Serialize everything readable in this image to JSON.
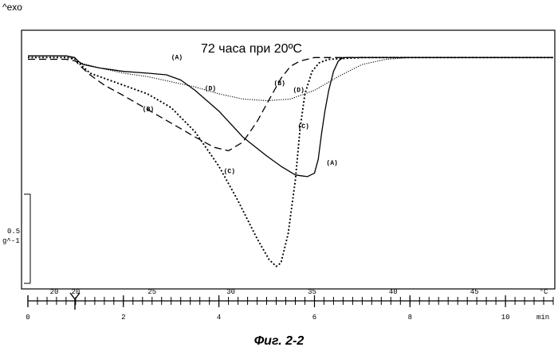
{
  "header_label": "^exo",
  "scale_bar": {
    "value": "0.5",
    "unit": "g^-1"
  },
  "caption": "Фиг. 2-2",
  "chart_data": {
    "type": "line",
    "title": "72 часа при 20ºC",
    "x_time": {
      "unit": "min",
      "lim": [
        0,
        11
      ],
      "ticks": [
        {
          "v": 0,
          "label": "0"
        },
        {
          "v": 2,
          "label": "2"
        },
        {
          "v": 4,
          "label": "4"
        },
        {
          "v": 6,
          "label": "6"
        },
        {
          "v": 8,
          "label": "8"
        },
        {
          "v": 10,
          "label": "10"
        }
      ]
    },
    "x_temp": {
      "unit": "°C",
      "ticks": [
        {
          "t": 0.55,
          "label": "20"
        },
        {
          "t": 1.0,
          "label": "20"
        },
        {
          "t": 2.6,
          "label": "25"
        },
        {
          "t": 4.25,
          "label": "30"
        },
        {
          "t": 5.95,
          "label": "35"
        },
        {
          "t": 7.65,
          "label": "40"
        },
        {
          "t": 9.35,
          "label": "45"
        },
        {
          "t": 10.8,
          "label": "°C"
        }
      ]
    },
    "y_lim": [
      -1.3,
      0.13
    ],
    "series": [
      {
        "name": "(A)",
        "dash": "",
        "width": 1.3,
        "label_positions": [
          {
            "t": 3.0,
            "y": -0.02
          },
          {
            "t": 6.25,
            "y": -0.63
          }
        ],
        "points": [
          [
            0,
            0
          ],
          [
            0.8,
            0
          ],
          [
            0.98,
            -0.01
          ],
          [
            1.05,
            -0.03
          ],
          [
            1.15,
            -0.05
          ],
          [
            1.5,
            -0.07
          ],
          [
            2.0,
            -0.09
          ],
          [
            2.5,
            -0.1
          ],
          [
            2.9,
            -0.11
          ],
          [
            3.2,
            -0.14
          ],
          [
            3.5,
            -0.2
          ],
          [
            4.0,
            -0.32
          ],
          [
            4.5,
            -0.47
          ],
          [
            5.0,
            -0.58
          ],
          [
            5.3,
            -0.64
          ],
          [
            5.6,
            -0.69
          ],
          [
            5.85,
            -0.7
          ],
          [
            6.0,
            -0.68
          ],
          [
            6.08,
            -0.6
          ],
          [
            6.15,
            -0.45
          ],
          [
            6.22,
            -0.32
          ],
          [
            6.3,
            -0.2
          ],
          [
            6.4,
            -0.09
          ],
          [
            6.5,
            -0.03
          ],
          [
            6.6,
            -0.01
          ],
          [
            6.8,
            -0.01
          ],
          [
            11,
            -0.01
          ]
        ]
      },
      {
        "name": "(B)",
        "dash": "9,5",
        "width": 1.3,
        "label_positions": [
          {
            "t": 2.4,
            "y": -0.32
          },
          {
            "t": 5.15,
            "y": -0.17
          }
        ],
        "points": [
          [
            0,
            -0.02
          ],
          [
            0.8,
            -0.02
          ],
          [
            1.0,
            -0.03
          ],
          [
            1.1,
            -0.06
          ],
          [
            1.3,
            -0.11
          ],
          [
            1.6,
            -0.17
          ],
          [
            2.0,
            -0.23
          ],
          [
            2.5,
            -0.31
          ],
          [
            3.0,
            -0.39
          ],
          [
            3.5,
            -0.47
          ],
          [
            3.9,
            -0.53
          ],
          [
            4.2,
            -0.55
          ],
          [
            4.5,
            -0.5
          ],
          [
            4.8,
            -0.38
          ],
          [
            5.1,
            -0.23
          ],
          [
            5.3,
            -0.13
          ],
          [
            5.5,
            -0.06
          ],
          [
            5.7,
            -0.03
          ],
          [
            6.0,
            -0.01
          ],
          [
            6.5,
            -0.01
          ],
          [
            11,
            -0.01
          ]
        ]
      },
      {
        "name": "(C)",
        "dash": "2,2.5",
        "width": 1.9,
        "label_positions": [
          {
            "t": 4.1,
            "y": -0.68
          },
          {
            "t": 5.65,
            "y": -0.42
          }
        ],
        "points": [
          [
            0,
            -0.01
          ],
          [
            0.8,
            -0.01
          ],
          [
            1.0,
            -0.02
          ],
          [
            1.1,
            -0.05
          ],
          [
            1.3,
            -0.1
          ],
          [
            1.6,
            -0.13
          ],
          [
            2.0,
            -0.17
          ],
          [
            2.5,
            -0.22
          ],
          [
            3.0,
            -0.3
          ],
          [
            3.5,
            -0.44
          ],
          [
            4.0,
            -0.64
          ],
          [
            4.4,
            -0.84
          ],
          [
            4.8,
            -1.06
          ],
          [
            5.05,
            -1.18
          ],
          [
            5.2,
            -1.22
          ],
          [
            5.3,
            -1.2
          ],
          [
            5.45,
            -1.03
          ],
          [
            5.6,
            -0.72
          ],
          [
            5.7,
            -0.42
          ],
          [
            5.8,
            -0.22
          ],
          [
            5.95,
            -0.09
          ],
          [
            6.1,
            -0.04
          ],
          [
            6.3,
            -0.02
          ],
          [
            7,
            -0.01
          ],
          [
            11,
            -0.01
          ]
        ]
      },
      {
        "name": "(D)",
        "dash": "1.2,1.6",
        "width": 1.1,
        "label_positions": [
          {
            "t": 3.7,
            "y": -0.2
          },
          {
            "t": 5.55,
            "y": -0.21
          }
        ],
        "points": [
          [
            0,
            0
          ],
          [
            0.8,
            0
          ],
          [
            1.0,
            -0.02
          ],
          [
            1.1,
            -0.04
          ],
          [
            1.5,
            -0.07
          ],
          [
            2.0,
            -0.1
          ],
          [
            2.5,
            -0.12
          ],
          [
            3.0,
            -0.15
          ],
          [
            3.5,
            -0.18
          ],
          [
            4.0,
            -0.22
          ],
          [
            4.5,
            -0.25
          ],
          [
            5.0,
            -0.26
          ],
          [
            5.5,
            -0.25
          ],
          [
            6.0,
            -0.2
          ],
          [
            6.5,
            -0.12
          ],
          [
            7.0,
            -0.05
          ],
          [
            7.5,
            -0.02
          ],
          [
            8.0,
            -0.01
          ],
          [
            11,
            -0.01
          ]
        ]
      }
    ]
  }
}
